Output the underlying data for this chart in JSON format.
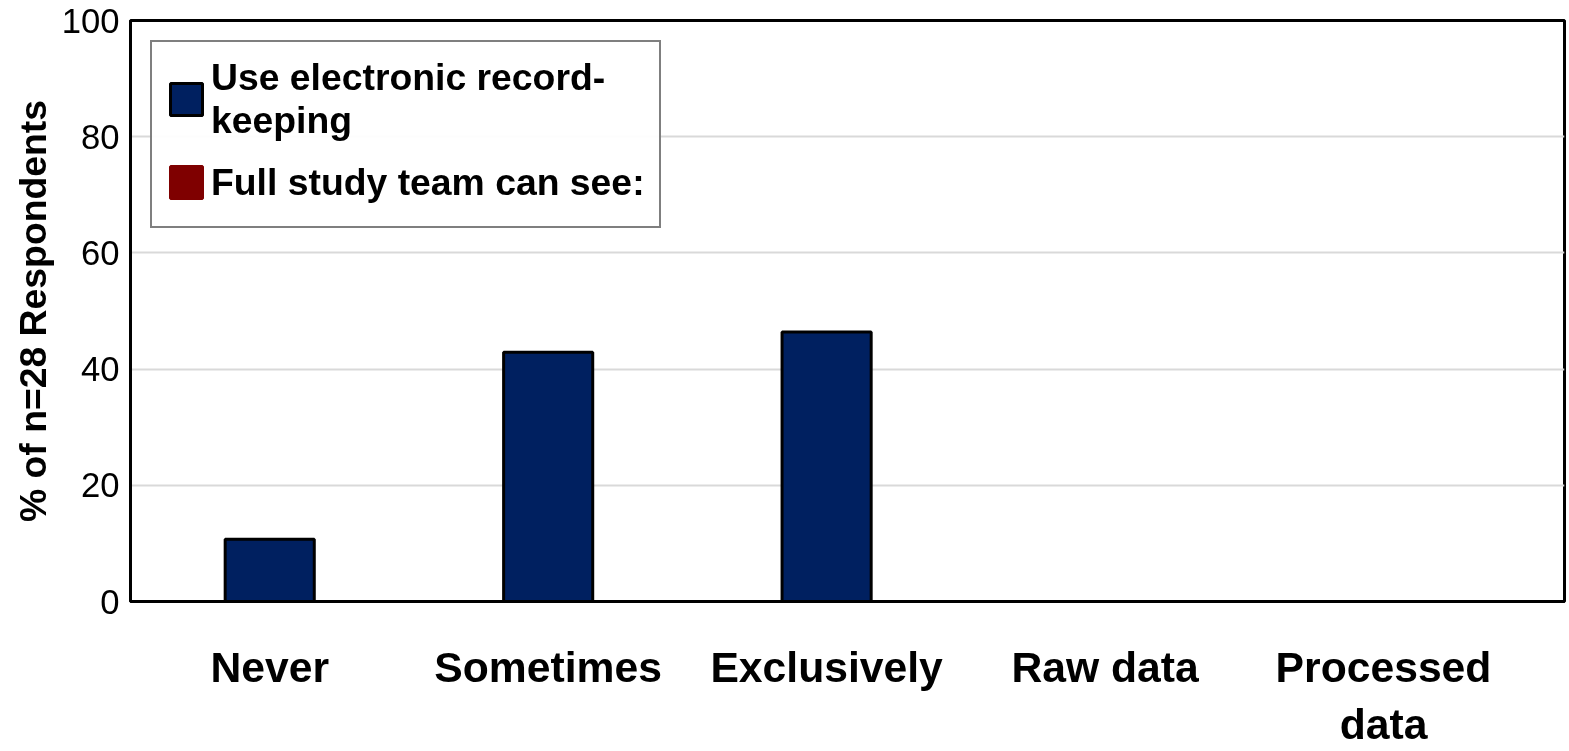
{
  "chart_data": {
    "type": "bar",
    "ylabel": "% of n=28 Respondents",
    "categories": [
      "Never",
      "Sometimes",
      "Exclusively",
      "Raw data",
      "Processed data"
    ],
    "series": [
      {
        "name": "Use electronic record-keeping",
        "color": "#002060",
        "values": [
          10.7,
          42.9,
          46.4,
          null,
          null
        ]
      },
      {
        "name": "Full study team can see:",
        "color": "#7f0000",
        "values": [
          null,
          null,
          null,
          0,
          0
        ]
      }
    ],
    "ylim": [
      0,
      100
    ],
    "yticks": [
      0,
      20,
      40,
      60,
      80,
      100
    ],
    "grid": "y",
    "legend": "top left"
  }
}
